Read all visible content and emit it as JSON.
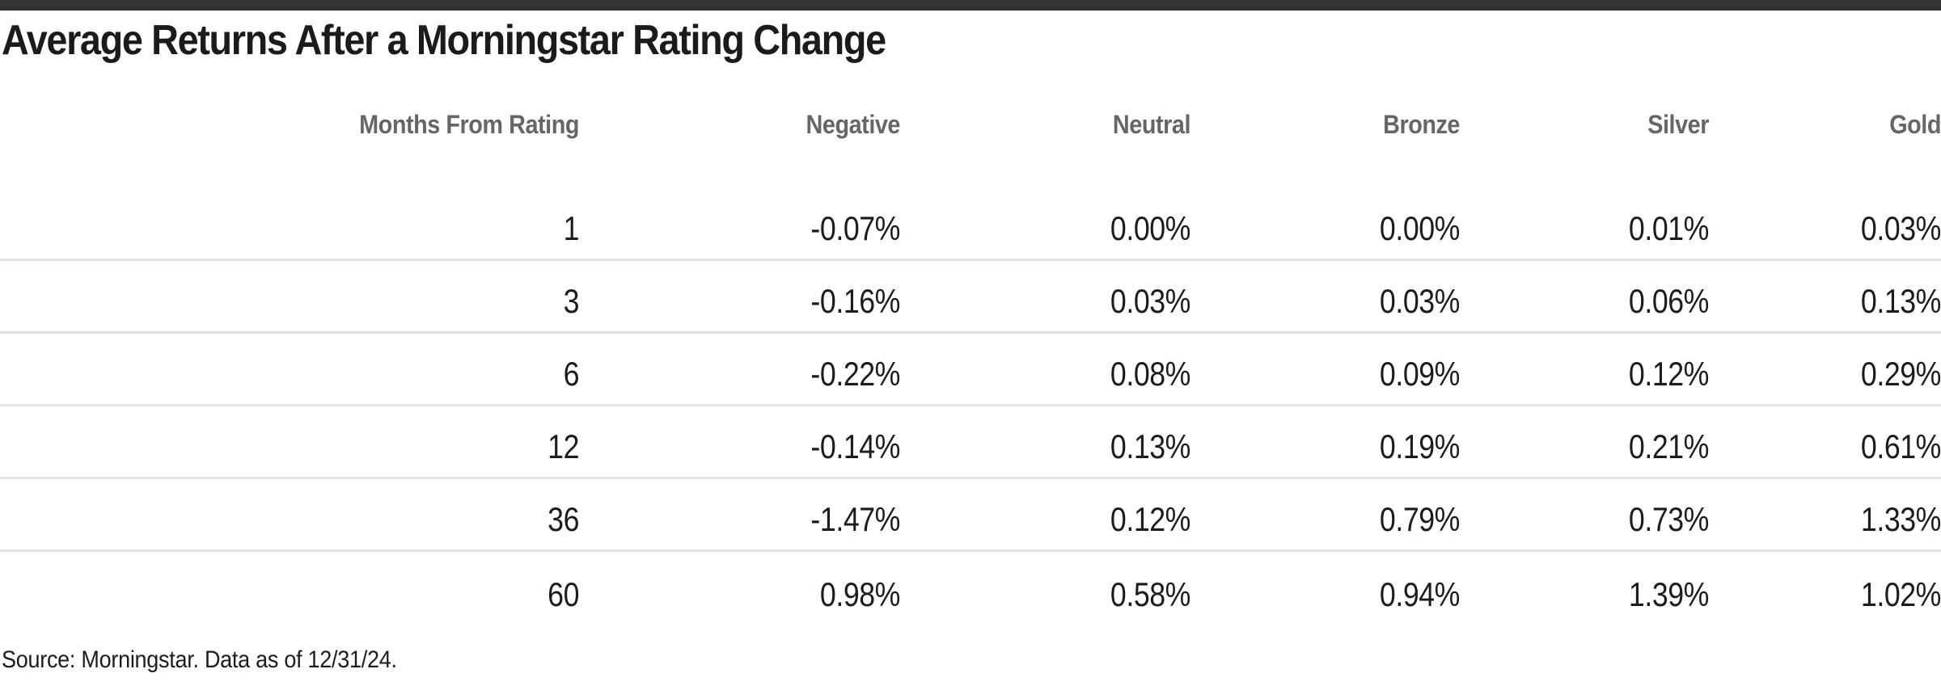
{
  "title": "Average Returns After a Morningstar Rating Change",
  "source_note": "Source: Morningstar. Data as of 12/31/24.",
  "colors": {
    "accent_bar": "#333333",
    "title_text": "#1b1b1b",
    "header_text": "#666666",
    "data_text": "#1c1c1c",
    "row_divider": "#e2e2e2",
    "background": "#ffffff"
  },
  "chart_data": {
    "type": "table",
    "title": "Average Returns After a Morningstar Rating Change",
    "columns": [
      "Months From Rating",
      "Negative",
      "Neutral",
      "Bronze",
      "Silver",
      "Gold"
    ],
    "rows": [
      [
        "1",
        "-0.07%",
        "0.00%",
        "0.00%",
        "0.01%",
        "0.03%"
      ],
      [
        "3",
        "-0.16%",
        "0.03%",
        "0.03%",
        "0.06%",
        "0.13%"
      ],
      [
        "6",
        "-0.22%",
        "0.08%",
        "0.09%",
        "0.12%",
        "0.29%"
      ],
      [
        "12",
        "-0.14%",
        "0.13%",
        "0.19%",
        "0.21%",
        "0.61%"
      ],
      [
        "36",
        "-1.47%",
        "0.12%",
        "0.79%",
        "0.73%",
        "1.33%"
      ],
      [
        "60",
        "0.98%",
        "0.58%",
        "0.94%",
        "1.39%",
        "1.02%"
      ]
    ],
    "column_alignment": "right",
    "grid": "horizontal-dividers-between-rows",
    "source": "Source: Morningstar. Data as of 12/31/24."
  }
}
